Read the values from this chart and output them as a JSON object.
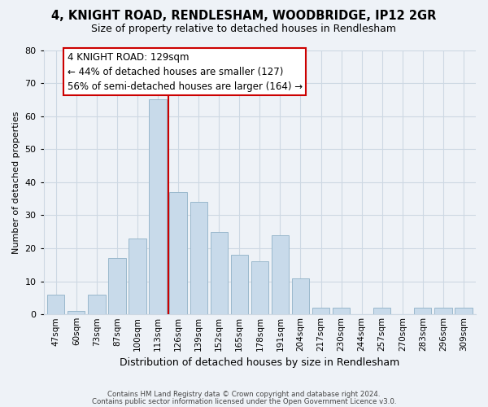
{
  "title": "4, KNIGHT ROAD, RENDLESHAM, WOODBRIDGE, IP12 2GR",
  "subtitle": "Size of property relative to detached houses in Rendlesham",
  "xlabel": "Distribution of detached houses by size in Rendlesham",
  "ylabel": "Number of detached properties",
  "bar_labels": [
    "47sqm",
    "60sqm",
    "73sqm",
    "87sqm",
    "100sqm",
    "113sqm",
    "126sqm",
    "139sqm",
    "152sqm",
    "165sqm",
    "178sqm",
    "191sqm",
    "204sqm",
    "217sqm",
    "230sqm",
    "244sqm",
    "257sqm",
    "270sqm",
    "283sqm",
    "296sqm",
    "309sqm"
  ],
  "bar_values": [
    6,
    1,
    6,
    17,
    23,
    65,
    37,
    34,
    25,
    18,
    16,
    24,
    11,
    2,
    2,
    0,
    2,
    0,
    2,
    2,
    2
  ],
  "bar_color": "#c8daea",
  "bar_edge_color": "#9ab8cc",
  "vline_color": "#cc0000",
  "annotation_line1": "4 KNIGHT ROAD: 129sqm",
  "annotation_line2": "← 44% of detached houses are smaller (127)",
  "annotation_line3": "56% of semi-detached houses are larger (164) →",
  "annotation_box_color": "#ffffff",
  "annotation_box_edge": "#cc0000",
  "ylim": [
    0,
    80
  ],
  "yticks": [
    0,
    10,
    20,
    30,
    40,
    50,
    60,
    70,
    80
  ],
  "grid_color": "#cdd8e3",
  "bg_color": "#eef2f7",
  "footer1": "Contains HM Land Registry data © Crown copyright and database right 2024.",
  "footer2": "Contains public sector information licensed under the Open Government Licence v3.0."
}
